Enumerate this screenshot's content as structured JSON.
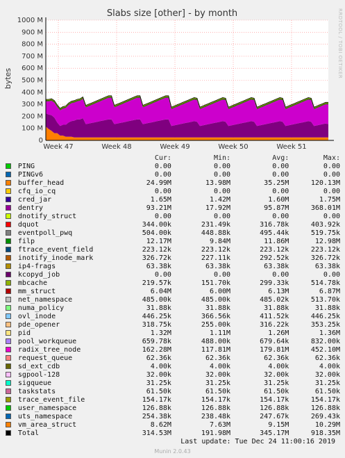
{
  "chart_data": {
    "type": "area",
    "title": "Slabs size [other] - by month",
    "ylabel": "bytes",
    "ylim": [
      0,
      1000000000
    ],
    "y_ticks": [
      "0",
      "100 M",
      "200 M",
      "300 M",
      "400 M",
      "500 M",
      "600 M",
      "700 M",
      "800 M",
      "900 M",
      "1000 M"
    ],
    "x_ticks": [
      "Week 47",
      "Week 48",
      "Week 49",
      "Week 50",
      "Week 51"
    ],
    "grid": true,
    "series": [
      {
        "name": "buffer_head",
        "color": "#ff7f00",
        "values": [
          115,
          95,
          80,
          60,
          60,
          40,
          40,
          30,
          30,
          30,
          25,
          25,
          25,
          25,
          25,
          25,
          25,
          25,
          25,
          25,
          25,
          25,
          25,
          25,
          25,
          25,
          25,
          25,
          25,
          25,
          25,
          25,
          25,
          25,
          25,
          25,
          25,
          25,
          25,
          25,
          25,
          25,
          25,
          25,
          25,
          25,
          25,
          25,
          25,
          25,
          25,
          25,
          25,
          25,
          25,
          25,
          25,
          25,
          25,
          25,
          25,
          25,
          25,
          25,
          25,
          25,
          25,
          25,
          25,
          25,
          25,
          25,
          25,
          25,
          25,
          25,
          25,
          25,
          25,
          25,
          25,
          25,
          25,
          25,
          25,
          25,
          25,
          25,
          25,
          25,
          25,
          25,
          25,
          25,
          25,
          25,
          25,
          25,
          25,
          25
        ]
      },
      {
        "name": "dentry",
        "color": "#7f007f",
        "values": [
          110,
          120,
          130,
          130,
          90,
          80,
          90,
          100,
          120,
          130,
          140,
          150,
          150,
          160,
          110,
          115,
          120,
          125,
          130,
          135,
          140,
          145,
          150,
          150,
          110,
          115,
          120,
          125,
          130,
          135,
          140,
          145,
          150,
          150,
          110,
          115,
          120,
          125,
          130,
          135,
          140,
          145,
          150,
          150,
          95,
          100,
          105,
          110,
          115,
          120,
          125,
          130,
          135,
          130,
          95,
          100,
          105,
          110,
          115,
          120,
          125,
          130,
          135,
          130,
          95,
          100,
          105,
          110,
          115,
          120,
          125,
          130,
          135,
          130,
          95,
          100,
          105,
          110,
          115,
          120,
          125,
          130,
          135,
          130,
          95,
          100,
          105,
          110,
          115,
          120,
          125,
          130,
          135,
          130,
          95,
          100,
          105,
          110,
          115,
          110
        ]
      },
      {
        "name": "inotify_inode_mark",
        "color": "#cc00cc",
        "values": [
          100,
          110,
          120,
          125,
          130,
          130,
          135,
          140,
          145,
          150,
          150,
          150,
          155,
          160,
          140,
          145,
          150,
          155,
          160,
          165,
          170,
          175,
          180,
          180,
          140,
          145,
          150,
          155,
          160,
          165,
          170,
          175,
          180,
          180,
          140,
          145,
          150,
          155,
          160,
          165,
          170,
          175,
          180,
          180,
          140,
          145,
          150,
          155,
          160,
          165,
          170,
          175,
          180,
          180,
          140,
          145,
          150,
          155,
          160,
          165,
          170,
          175,
          180,
          180,
          140,
          145,
          150,
          155,
          160,
          165,
          170,
          175,
          180,
          180,
          140,
          145,
          150,
          155,
          160,
          165,
          170,
          175,
          180,
          180,
          140,
          145,
          150,
          155,
          160,
          165,
          170,
          175,
          180,
          180,
          140,
          145,
          150,
          155,
          160,
          165
        ]
      },
      {
        "name": "radix_tree_node",
        "color": "#336600",
        "values": [
          10,
          10,
          10,
          10,
          10,
          10,
          10,
          10,
          10,
          10,
          10,
          10,
          10,
          10,
          10,
          10,
          10,
          10,
          10,
          10,
          10,
          10,
          10,
          10,
          10,
          10,
          10,
          10,
          10,
          10,
          10,
          10,
          10,
          10,
          10,
          10,
          10,
          10,
          10,
          10,
          10,
          10,
          10,
          10,
          10,
          10,
          10,
          10,
          10,
          10,
          10,
          10,
          10,
          10,
          10,
          10,
          10,
          10,
          10,
          10,
          10,
          10,
          10,
          10,
          10,
          10,
          10,
          10,
          10,
          10,
          10,
          10,
          10,
          10,
          10,
          10,
          10,
          10,
          10,
          10,
          10,
          10,
          10,
          10,
          10,
          10,
          10,
          10,
          10,
          10,
          10,
          10,
          10,
          10,
          10,
          10,
          10,
          10,
          10,
          10
        ]
      },
      {
        "name": "vm_area_struct",
        "color": "#aacc00",
        "values": [
          6,
          6,
          6,
          6,
          6,
          6,
          6,
          6,
          6,
          6,
          6,
          6,
          6,
          6,
          6,
          6,
          6,
          6,
          6,
          6,
          6,
          6,
          6,
          6,
          6,
          6,
          6,
          6,
          6,
          6,
          6,
          6,
          6,
          6,
          6,
          6,
          6,
          6,
          6,
          6,
          6,
          6,
          6,
          6,
          6,
          6,
          6,
          6,
          6,
          6,
          6,
          6,
          6,
          6,
          6,
          6,
          6,
          6,
          6,
          6,
          6,
          6,
          6,
          6,
          6,
          6,
          6,
          6,
          6,
          6,
          6,
          6,
          6,
          6,
          6,
          6,
          6,
          6,
          6,
          6,
          6,
          6,
          6,
          6,
          6,
          6,
          6,
          6,
          6,
          6,
          6,
          6,
          6,
          6,
          6,
          6,
          6,
          6,
          6,
          6
        ]
      }
    ],
    "legend_placement": "below"
  },
  "legend": {
    "headers": [
      "Cur:",
      "Min:",
      "Avg:",
      "Max:"
    ],
    "rows": [
      {
        "name": "PING",
        "color": "#00cc00",
        "cur": "0.00",
        "min": "0.00",
        "avg": "0.00",
        "max": "0.00"
      },
      {
        "name": "PINGv6",
        "color": "#0066b3",
        "cur": "0.00",
        "min": "0.00",
        "avg": "0.00",
        "max": "0.00"
      },
      {
        "name": "buffer_head",
        "color": "#ff8000",
        "cur": "24.99M",
        "min": "13.98M",
        "avg": "35.25M",
        "max": "120.13M"
      },
      {
        "name": "cfq_io_cq",
        "color": "#ffcc00",
        "cur": "0.00",
        "min": "0.00",
        "avg": "0.00",
        "max": "0.00"
      },
      {
        "name": "cred_jar",
        "color": "#330099",
        "cur": "1.65M",
        "min": "1.42M",
        "avg": "1.60M",
        "max": "1.75M"
      },
      {
        "name": "dentry",
        "color": "#990099",
        "cur": "93.21M",
        "min": "17.92M",
        "avg": "95.87M",
        "max": "368.01M"
      },
      {
        "name": "dnotify_struct",
        "color": "#ccff00",
        "cur": "0.00",
        "min": "0.00",
        "avg": "0.00",
        "max": "0.00"
      },
      {
        "name": "dquot",
        "color": "#ff0000",
        "cur": "344.00k",
        "min": "231.49k",
        "avg": "316.78k",
        "max": "403.92k"
      },
      {
        "name": "eventpoll_pwq",
        "color": "#808080",
        "cur": "504.00k",
        "min": "448.88k",
        "avg": "495.44k",
        "max": "519.75k"
      },
      {
        "name": "filp",
        "color": "#008f00",
        "cur": "12.17M",
        "min": "9.84M",
        "avg": "11.86M",
        "max": "12.98M"
      },
      {
        "name": "ftrace_event_field",
        "color": "#00487d",
        "cur": "223.12k",
        "min": "223.12k",
        "avg": "223.12k",
        "max": "223.12k"
      },
      {
        "name": "inotify_inode_mark",
        "color": "#b35a00",
        "cur": "326.72k",
        "min": "227.11k",
        "avg": "292.52k",
        "max": "326.72k"
      },
      {
        "name": "ip4-frags",
        "color": "#b38f00",
        "cur": "63.38k",
        "min": "63.38k",
        "avg": "63.38k",
        "max": "63.38k"
      },
      {
        "name": "kcopyd_job",
        "color": "#6b006b",
        "cur": "0.00",
        "min": "0.00",
        "avg": "0.00",
        "max": "0.00"
      },
      {
        "name": "mbcache",
        "color": "#8fb300",
        "cur": "219.57k",
        "min": "151.70k",
        "avg": "299.33k",
        "max": "514.78k"
      },
      {
        "name": "mm_struct",
        "color": "#b30000",
        "cur": "6.04M",
        "min": "6.00M",
        "avg": "6.13M",
        "max": "6.87M"
      },
      {
        "name": "net_namespace",
        "color": "#bebebe",
        "cur": "485.00k",
        "min": "485.00k",
        "avg": "485.02k",
        "max": "513.70k"
      },
      {
        "name": "numa_policy",
        "color": "#80ff80",
        "cur": "31.88k",
        "min": "31.88k",
        "avg": "31.88k",
        "max": "31.88k"
      },
      {
        "name": "ovl_inode",
        "color": "#80c9ff",
        "cur": "446.25k",
        "min": "366.56k",
        "avg": "411.52k",
        "max": "446.25k"
      },
      {
        "name": "pde_opener",
        "color": "#ffc080",
        "cur": "318.75k",
        "min": "255.00k",
        "avg": "316.22k",
        "max": "353.25k"
      },
      {
        "name": "pid",
        "color": "#ffe680",
        "cur": "1.32M",
        "min": "1.11M",
        "avg": "1.26M",
        "max": "1.36M"
      },
      {
        "name": "pool_workqueue",
        "color": "#aa80ff",
        "cur": "659.78k",
        "min": "488.00k",
        "avg": "679.64k",
        "max": "832.00k"
      },
      {
        "name": "radix_tree_node",
        "color": "#ee00cc",
        "cur": "162.28M",
        "min": "117.81M",
        "avg": "179.81M",
        "max": "452.10M"
      },
      {
        "name": "request_queue",
        "color": "#ff8080",
        "cur": "62.36k",
        "min": "62.36k",
        "avg": "62.36k",
        "max": "62.36k"
      },
      {
        "name": "sd_ext_cdb",
        "color": "#666600",
        "cur": "4.00k",
        "min": "4.00k",
        "avg": "4.00k",
        "max": "4.00k"
      },
      {
        "name": "sgpool-128",
        "color": "#ffbfff",
        "cur": "32.00k",
        "min": "32.00k",
        "avg": "32.00k",
        "max": "32.00k"
      },
      {
        "name": "sigqueue",
        "color": "#00ffcc",
        "cur": "31.25k",
        "min": "31.25k",
        "avg": "31.25k",
        "max": "31.25k"
      },
      {
        "name": "taskstats",
        "color": "#cc6699",
        "cur": "61.50k",
        "min": "61.50k",
        "avg": "61.50k",
        "max": "61.50k"
      },
      {
        "name": "trace_event_file",
        "color": "#999900",
        "cur": "154.17k",
        "min": "154.17k",
        "avg": "154.17k",
        "max": "154.17k"
      },
      {
        "name": "user_namespace",
        "color": "#00cc00",
        "cur": "126.88k",
        "min": "126.88k",
        "avg": "126.88k",
        "max": "126.88k"
      },
      {
        "name": "uts_namespace",
        "color": "#0066b3",
        "cur": "254.38k",
        "min": "238.48k",
        "avg": "247.67k",
        "max": "269.43k"
      },
      {
        "name": "vm_area_struct",
        "color": "#ff8000",
        "cur": "8.62M",
        "min": "7.63M",
        "avg": "9.15M",
        "max": "10.29M"
      },
      {
        "name": "Total",
        "color": "#000000",
        "cur": "314.53M",
        "min": "191.98M",
        "avg": "345.17M",
        "max": "918.35M"
      }
    ]
  },
  "footer": {
    "last_update": "Last update:  Tue Dec 24 11:00:16 2019",
    "version": "Munin 2.0.43",
    "watermark": "RRDTOOL / TOBI OETIKER"
  }
}
